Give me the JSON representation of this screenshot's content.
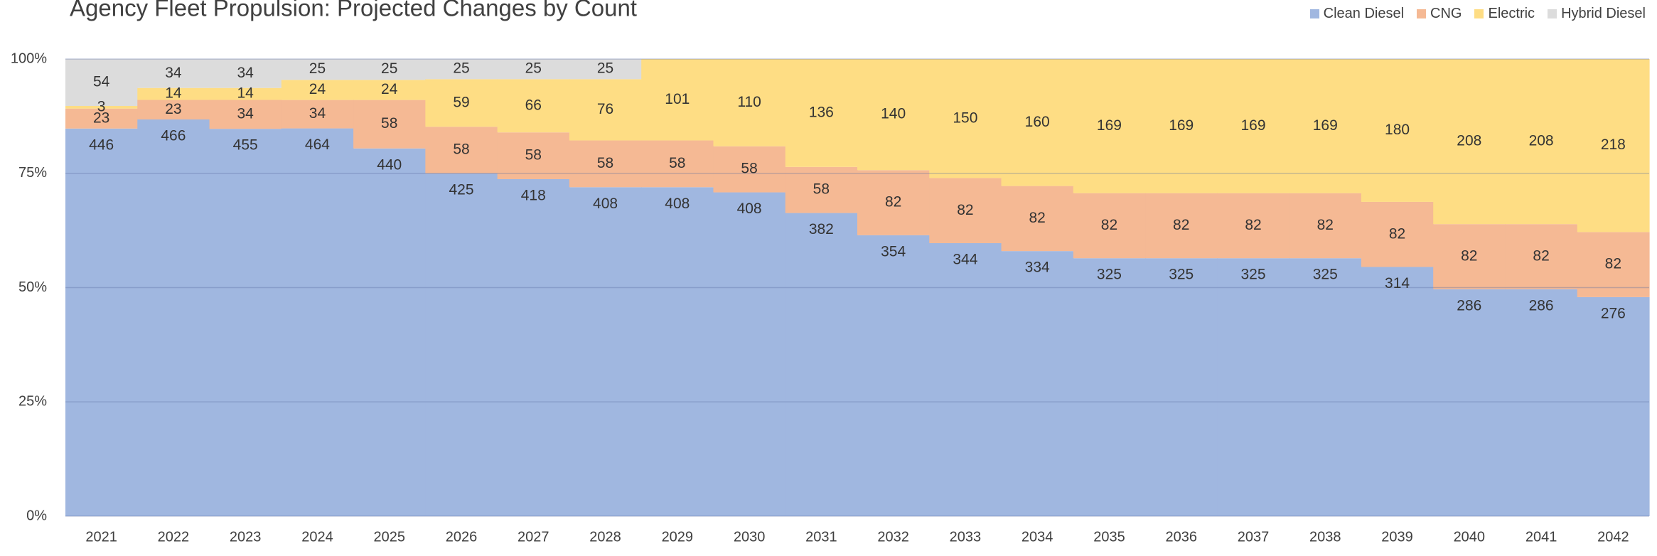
{
  "chart_data": {
    "type": "area",
    "stacking": "percent",
    "step": true,
    "title": "Agency Fleet Propulsion: Projected Changes by Count",
    "categories": [
      "2021",
      "2022",
      "2023",
      "2024",
      "2025",
      "2026",
      "2027",
      "2028",
      "2029",
      "2030",
      "2031",
      "2032",
      "2033",
      "2034",
      "2035",
      "2036",
      "2037",
      "2038",
      "2039",
      "2040",
      "2041",
      "2042"
    ],
    "series": [
      {
        "name": "Clean Diesel",
        "color": "#a0b7e0",
        "values": [
          446,
          466,
          455,
          464,
          440,
          425,
          418,
          408,
          408,
          408,
          382,
          354,
          344,
          334,
          325,
          325,
          325,
          325,
          314,
          286,
          286,
          276
        ]
      },
      {
        "name": "CNG",
        "color": "#f5b994",
        "values": [
          23,
          23,
          34,
          34,
          58,
          58,
          58,
          58,
          58,
          58,
          58,
          82,
          82,
          82,
          82,
          82,
          82,
          82,
          82,
          82,
          82,
          82
        ]
      },
      {
        "name": "Electric",
        "color": "#fedd84",
        "values": [
          3,
          14,
          14,
          24,
          24,
          59,
          66,
          76,
          101,
          110,
          136,
          140,
          150,
          160,
          169,
          169,
          169,
          169,
          180,
          208,
          208,
          218
        ]
      },
      {
        "name": "Hybrid Diesel",
        "color": "#dcdcdc",
        "values": [
          54,
          34,
          34,
          25,
          25,
          25,
          25,
          25,
          0,
          0,
          0,
          0,
          0,
          0,
          0,
          0,
          0,
          0,
          0,
          0,
          0,
          0
        ]
      }
    ],
    "ylim": [
      0,
      100
    ],
    "yticks": [
      {
        "value": 0,
        "label": "0%"
      },
      {
        "value": 25,
        "label": "25%"
      },
      {
        "value": 50,
        "label": "50%"
      },
      {
        "value": 75,
        "label": "75%"
      },
      {
        "value": 100,
        "label": "100%"
      }
    ],
    "grid": true,
    "legend": "top-right"
  }
}
